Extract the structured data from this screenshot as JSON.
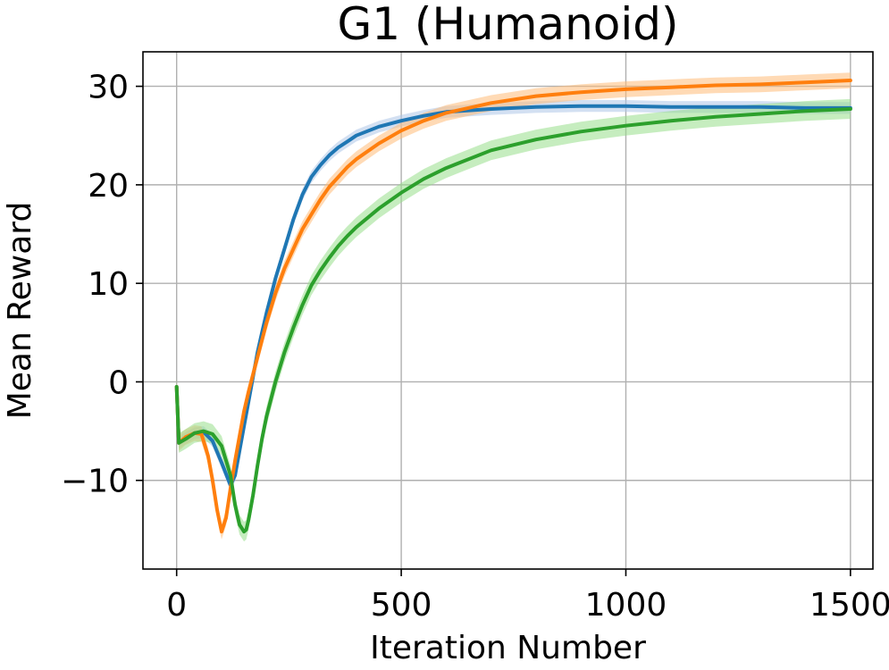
{
  "chart_data": {
    "type": "line",
    "title": "G1 (Humanoid)",
    "xlabel": "Iteration Number",
    "ylabel": "Mean Reward",
    "xlim": [
      -75,
      1550
    ],
    "ylim": [
      -19,
      33.5
    ],
    "xticks": [
      0,
      500,
      1000,
      1500
    ],
    "xtick_labels": [
      "0",
      "500",
      "1000",
      "1500"
    ],
    "yticks": [
      -10,
      0,
      10,
      20,
      30
    ],
    "ytick_labels": [
      "−10",
      "0",
      "10",
      "20",
      "30"
    ],
    "grid": true,
    "legend": "none",
    "series": [
      {
        "color": "#1f77b4",
        "band_color": "#aec7e8",
        "x": [
          0,
          5,
          20,
          40,
          60,
          80,
          100,
          120,
          130,
          140,
          150,
          160,
          170,
          180,
          190,
          200,
          220,
          240,
          260,
          280,
          300,
          320,
          340,
          360,
          380,
          400,
          450,
          500,
          550,
          600,
          700,
          800,
          900,
          1000,
          1100,
          1200,
          1300,
          1400,
          1500
        ],
        "y": [
          -0.5,
          -6.2,
          -5.7,
          -5.2,
          -5.1,
          -6.0,
          -8.2,
          -10.5,
          -9.5,
          -7.0,
          -4.5,
          -2.0,
          0.5,
          3.0,
          5.0,
          7.0,
          10.5,
          13.5,
          16.5,
          19.0,
          20.8,
          22.0,
          23.0,
          23.8,
          24.4,
          25.0,
          25.9,
          26.5,
          27.0,
          27.4,
          27.7,
          27.9,
          28.0,
          28.0,
          27.9,
          27.9,
          27.9,
          27.8,
          27.8
        ],
        "spread": 0.6
      },
      {
        "color": "#ff7f0e",
        "band_color": "#ffbb78",
        "x": [
          0,
          5,
          20,
          40,
          55,
          70,
          80,
          90,
          100,
          110,
          120,
          130,
          140,
          150,
          160,
          180,
          200,
          220,
          240,
          260,
          280,
          300,
          320,
          340,
          360,
          380,
          400,
          450,
          500,
          550,
          600,
          700,
          800,
          900,
          1000,
          1100,
          1200,
          1300,
          1400,
          1500
        ],
        "y": [
          -0.5,
          -6.2,
          -5.6,
          -5.2,
          -5.3,
          -7.5,
          -10.0,
          -13.0,
          -15.2,
          -13.8,
          -10.8,
          -8.0,
          -5.5,
          -3.0,
          -1.0,
          2.5,
          6.0,
          9.0,
          11.5,
          13.5,
          15.5,
          17.0,
          18.5,
          19.8,
          20.8,
          21.8,
          22.6,
          24.2,
          25.5,
          26.5,
          27.3,
          28.3,
          29.0,
          29.4,
          29.7,
          29.9,
          30.1,
          30.2,
          30.4,
          30.6
        ],
        "spread": 0.8
      },
      {
        "color": "#2ca02c",
        "band_color": "#98df8a",
        "x": [
          0,
          5,
          20,
          40,
          60,
          80,
          100,
          120,
          130,
          140,
          150,
          155,
          160,
          170,
          180,
          190,
          200,
          220,
          240,
          260,
          280,
          300,
          320,
          340,
          360,
          380,
          400,
          450,
          500,
          550,
          600,
          700,
          800,
          900,
          1000,
          1100,
          1200,
          1300,
          1400,
          1500
        ],
        "y": [
          -0.5,
          -6.2,
          -5.8,
          -5.2,
          -5.0,
          -5.3,
          -6.5,
          -9.5,
          -12.5,
          -14.5,
          -15.2,
          -15.0,
          -14.0,
          -11.5,
          -8.5,
          -5.8,
          -3.5,
          0.0,
          3.0,
          5.5,
          7.8,
          9.8,
          11.3,
          12.6,
          13.8,
          14.8,
          15.7,
          17.6,
          19.2,
          20.6,
          21.7,
          23.5,
          24.6,
          25.4,
          26.0,
          26.5,
          26.9,
          27.2,
          27.5,
          27.7
        ],
        "spread": 1.0
      }
    ]
  }
}
